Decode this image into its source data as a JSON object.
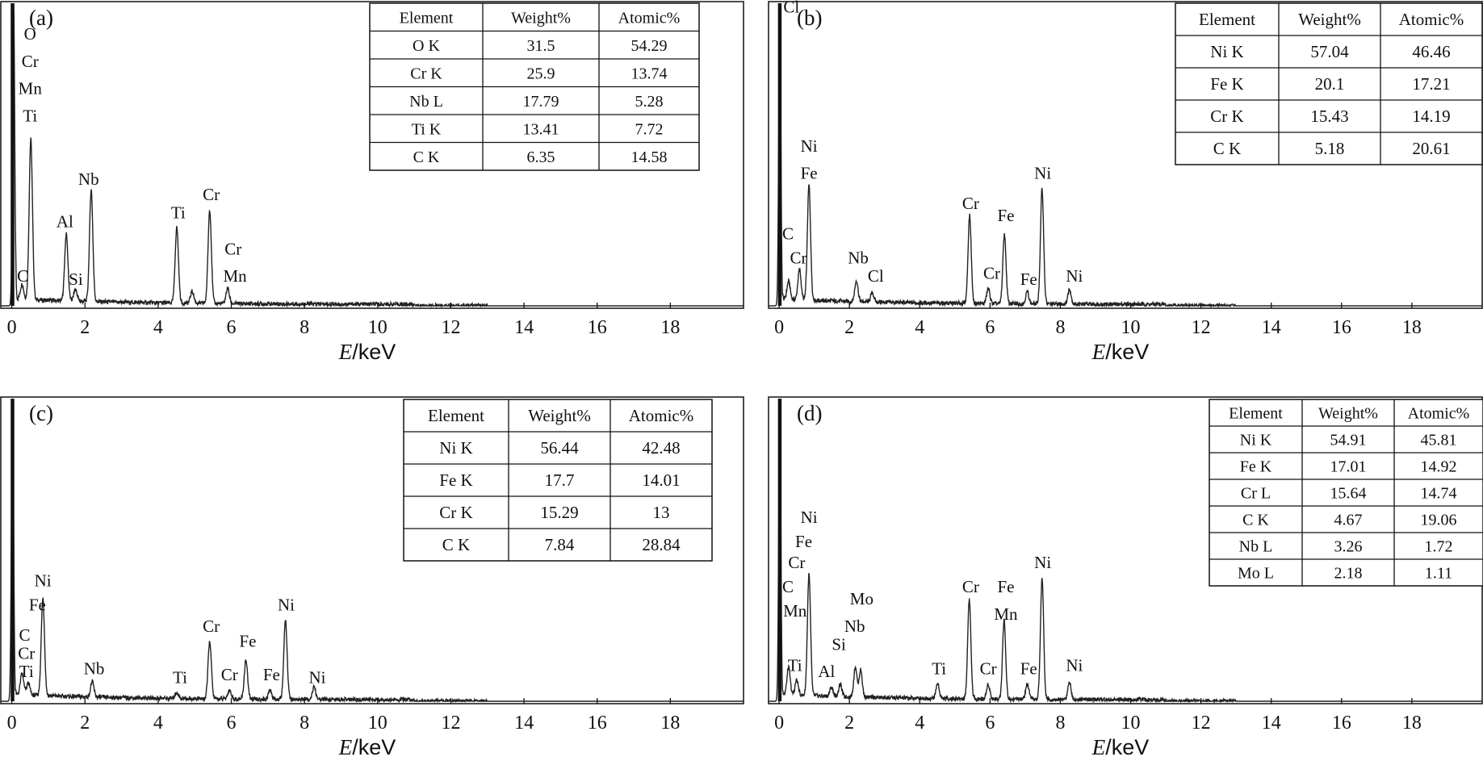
{
  "chart_data": [
    {
      "type": "line",
      "panel_label": "(a)",
      "xlabel_italic": "E",
      "xlabel_rest": "/keV",
      "xlim": [
        -0.3,
        20
      ],
      "xticks": [
        0,
        2,
        4,
        6,
        8,
        10,
        12,
        14,
        16,
        18
      ],
      "series": [
        {
          "name": "EDS spectrum (a)",
          "peaks": [
            [
              0.05,
              100
            ],
            [
              0.28,
              5
            ],
            [
              0.52,
              53
            ],
            [
              1.49,
              22
            ],
            [
              1.74,
              4
            ],
            [
              2.17,
              37
            ],
            [
              4.51,
              25
            ],
            [
              4.93,
              4
            ],
            [
              5.41,
              31
            ],
            [
              5.9,
              5
            ]
          ]
        }
      ],
      "peak_labels": [
        {
          "text": "O",
          "x": 0.5,
          "y": 88
        },
        {
          "text": "Cr",
          "x": 0.5,
          "y": 79
        },
        {
          "text": "Mn",
          "x": 0.5,
          "y": 70
        },
        {
          "text": "Ti",
          "x": 0.5,
          "y": 61
        },
        {
          "text": "Nb",
          "x": 2.1,
          "y": 40
        },
        {
          "text": "Al",
          "x": 1.45,
          "y": 26
        },
        {
          "text": "Si",
          "x": 1.75,
          "y": 7
        },
        {
          "text": "C",
          "x": 0.3,
          "y": 8
        },
        {
          "text": "Ti",
          "x": 4.55,
          "y": 29
        },
        {
          "text": "Cr",
          "x": 5.45,
          "y": 35
        },
        {
          "text": "Cr",
          "x": 6.05,
          "y": 17
        },
        {
          "text": "Mn",
          "x": 6.1,
          "y": 8
        }
      ],
      "table": {
        "headers": [
          "Element",
          "Weight%",
          "Atomic%"
        ],
        "rows": [
          [
            "O K",
            "31.5",
            "54.29"
          ],
          [
            "Cr K",
            "25.9",
            "13.74"
          ],
          [
            "Nb L",
            "17.79",
            "5.28"
          ],
          [
            "Ti K",
            "13.41",
            "7.72"
          ],
          [
            "C K",
            "6.35",
            "14.58"
          ]
        ]
      }
    },
    {
      "type": "line",
      "panel_label": "(b)",
      "xlabel_italic": "E",
      "xlabel_rest": "/keV",
      "xlim": [
        -0.3,
        20
      ],
      "xticks": [
        0,
        2,
        4,
        6,
        8,
        10,
        12,
        14,
        16,
        18
      ],
      "series": [
        {
          "name": "EDS spectrum (b)",
          "peaks": [
            [
              0.02,
              100
            ],
            [
              0.27,
              6
            ],
            [
              0.58,
              10
            ],
            [
              0.85,
              38
            ],
            [
              2.2,
              7
            ],
            [
              2.65,
              3
            ],
            [
              5.42,
              29
            ],
            [
              5.95,
              5
            ],
            [
              6.41,
              23
            ],
            [
              7.06,
              4
            ],
            [
              7.48,
              38
            ],
            [
              8.26,
              5
            ]
          ]
        }
      ],
      "peak_labels": [
        {
          "text": "Cl",
          "x": 0.35,
          "y": 97
        },
        {
          "text": "Ni",
          "x": 0.85,
          "y": 51
        },
        {
          "text": "Fe",
          "x": 0.85,
          "y": 42
        },
        {
          "text": "C",
          "x": 0.25,
          "y": 22
        },
        {
          "text": "Cr",
          "x": 0.55,
          "y": 14
        },
        {
          "text": "Nb",
          "x": 2.25,
          "y": 14
        },
        {
          "text": "Cl",
          "x": 2.75,
          "y": 8
        },
        {
          "text": "Cr",
          "x": 5.45,
          "y": 32
        },
        {
          "text": "Cr",
          "x": 6.05,
          "y": 9
        },
        {
          "text": "Fe",
          "x": 6.45,
          "y": 28
        },
        {
          "text": "Fe",
          "x": 7.1,
          "y": 7
        },
        {
          "text": "Ni",
          "x": 7.5,
          "y": 42
        },
        {
          "text": "Ni",
          "x": 8.4,
          "y": 8
        }
      ],
      "table": {
        "headers": [
          "Element",
          "Weight%",
          "Atomic%"
        ],
        "rows": [
          [
            "Ni K",
            "57.04",
            "46.46"
          ],
          [
            "Fe K",
            "20.1",
            "17.21"
          ],
          [
            "Cr K",
            "15.43",
            "14.19"
          ],
          [
            "C K",
            "5.18",
            "20.61"
          ]
        ]
      }
    },
    {
      "type": "line",
      "panel_label": "(c)",
      "xlabel_italic": "E",
      "xlabel_rest": "/keV",
      "xlim": [
        -0.3,
        20
      ],
      "xticks": [
        0,
        2,
        4,
        6,
        8,
        10,
        12,
        14,
        16,
        18
      ],
      "series": [
        {
          "name": "EDS spectrum (c)",
          "peaks": [
            [
              0.02,
              100
            ],
            [
              0.28,
              7
            ],
            [
              0.45,
              4
            ],
            [
              0.85,
              32
            ],
            [
              2.2,
              5
            ],
            [
              4.51,
              2
            ],
            [
              5.41,
              19
            ],
            [
              5.95,
              3
            ],
            [
              6.4,
              13
            ],
            [
              7.06,
              3
            ],
            [
              7.48,
              26
            ],
            [
              8.26,
              4
            ]
          ]
        }
      ],
      "peak_labels": [
        {
          "text": "Ni",
          "x": 0.85,
          "y": 38
        },
        {
          "text": "Fe",
          "x": 0.7,
          "y": 30
        },
        {
          "text": "C",
          "x": 0.35,
          "y": 20
        },
        {
          "text": "Cr",
          "x": 0.4,
          "y": 14
        },
        {
          "text": "Ti",
          "x": 0.4,
          "y": 8
        },
        {
          "text": "Nb",
          "x": 2.25,
          "y": 9
        },
        {
          "text": "Ti",
          "x": 4.6,
          "y": 6
        },
        {
          "text": "Cr",
          "x": 5.45,
          "y": 23
        },
        {
          "text": "Cr",
          "x": 5.95,
          "y": 7
        },
        {
          "text": "Fe",
          "x": 6.45,
          "y": 18
        },
        {
          "text": "Fe",
          "x": 7.1,
          "y": 7
        },
        {
          "text": "Ni",
          "x": 7.5,
          "y": 30
        },
        {
          "text": "Ni",
          "x": 8.35,
          "y": 6
        }
      ],
      "table": {
        "headers": [
          "Element",
          "Weight%",
          "Atomic%"
        ],
        "rows": [
          [
            "Ni K",
            "56.44",
            "42.48"
          ],
          [
            "Fe K",
            "17.7",
            "14.01"
          ],
          [
            "Cr K",
            "15.29",
            "13"
          ],
          [
            "C K",
            "7.84",
            "28.84"
          ]
        ]
      }
    },
    {
      "type": "line",
      "panel_label": "(d)",
      "xlabel_italic": "E",
      "xlabel_rest": "/keV",
      "xlim": [
        -0.3,
        20
      ],
      "xticks": [
        0,
        2,
        4,
        6,
        8,
        10,
        12,
        14,
        16,
        18
      ],
      "series": [
        {
          "name": "EDS spectrum (d)",
          "peaks": [
            [
              0.02,
              100
            ],
            [
              0.27,
              9
            ],
            [
              0.5,
              5
            ],
            [
              0.85,
              40
            ],
            [
              1.49,
              3
            ],
            [
              1.74,
              4
            ],
            [
              2.17,
              10
            ],
            [
              2.32,
              9
            ],
            [
              4.51,
              5
            ],
            [
              5.41,
              33
            ],
            [
              5.95,
              5
            ],
            [
              6.4,
              26
            ],
            [
              7.06,
              5
            ],
            [
              7.48,
              40
            ],
            [
              8.26,
              6
            ]
          ]
        }
      ],
      "peak_labels": [
        {
          "text": "Ni",
          "x": 0.85,
          "y": 59
        },
        {
          "text": "Fe",
          "x": 0.7,
          "y": 51
        },
        {
          "text": "Cr",
          "x": 0.5,
          "y": 44
        },
        {
          "text": "C",
          "x": 0.25,
          "y": 36
        },
        {
          "text": "Mn",
          "x": 0.45,
          "y": 28
        },
        {
          "text": "Ti",
          "x": 0.45,
          "y": 10
        },
        {
          "text": "Mo",
          "x": 2.35,
          "y": 32
        },
        {
          "text": "Nb",
          "x": 2.15,
          "y": 23
        },
        {
          "text": "Si",
          "x": 1.7,
          "y": 17
        },
        {
          "text": "Al",
          "x": 1.35,
          "y": 8
        },
        {
          "text": "Ti",
          "x": 4.55,
          "y": 9
        },
        {
          "text": "Cr",
          "x": 5.45,
          "y": 36
        },
        {
          "text": "Cr",
          "x": 5.95,
          "y": 9
        },
        {
          "text": "Fe",
          "x": 6.45,
          "y": 36
        },
        {
          "text": "Mn",
          "x": 6.45,
          "y": 27
        },
        {
          "text": "Fe",
          "x": 7.1,
          "y": 9
        },
        {
          "text": "Ni",
          "x": 7.5,
          "y": 44
        },
        {
          "text": "Ni",
          "x": 8.4,
          "y": 10
        }
      ],
      "table": {
        "headers": [
          "Element",
          "Weight%",
          "Atomic%"
        ],
        "rows": [
          [
            "Ni K",
            "54.91",
            "45.81"
          ],
          [
            "Fe K",
            "17.01",
            "14.92"
          ],
          [
            "Cr L",
            "15.64",
            "14.74"
          ],
          [
            "C K",
            "4.67",
            "19.06"
          ],
          [
            "Nb L",
            "3.26",
            "1.72"
          ],
          [
            "Mo L",
            "2.18",
            "1.11"
          ]
        ]
      }
    }
  ]
}
